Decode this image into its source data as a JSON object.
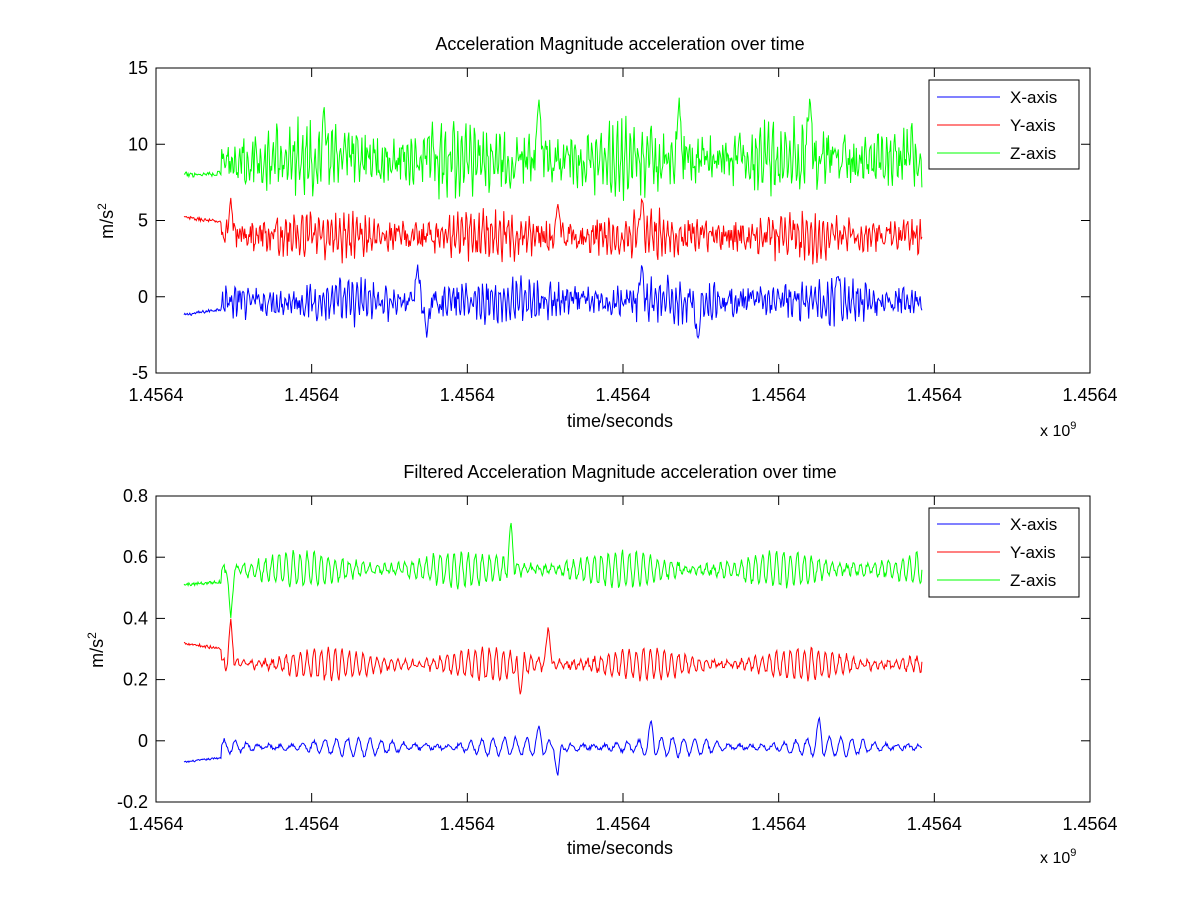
{
  "chart_data": [
    {
      "type": "line",
      "title": "Acceleration Magnitude acceleration over time",
      "xlabel": "time/seconds",
      "ylabel": "m/s",
      "ylabel_superscript": "2",
      "x_multiplier": {
        "base": "x 10",
        "exponent": "9"
      },
      "xtick_labels": [
        "1.4564",
        "1.4564",
        "1.4564",
        "1.4564",
        "1.4564",
        "1.4564",
        "1.4564"
      ],
      "yticks": [
        -5,
        0,
        5,
        10,
        15
      ],
      "ylim": [
        -5,
        15
      ],
      "legend_position": "top-right",
      "data_x_range": [
        0.03,
        0.82
      ],
      "series": [
        {
          "name": "X-axis",
          "color": "#0000ff",
          "baseline": [
            -1.2,
            -1.0,
            -0.8
          ],
          "burst_start": 0.07,
          "active_mean": -0.3,
          "amplitude": 1.4,
          "dominant_period": 0.0045,
          "peaks": [
            [
              0.28,
              2.2
            ],
            [
              0.29,
              -2.8
            ],
            [
              0.52,
              2.2
            ],
            [
              0.58,
              -3.0
            ],
            [
              0.73,
              1.6
            ]
          ]
        },
        {
          "name": "Y-axis",
          "color": "#ff0000",
          "baseline": [
            5.2,
            5.0,
            4.9
          ],
          "burst_start": 0.07,
          "active_mean": 4.0,
          "amplitude": 1.5,
          "dominant_period": 0.0045,
          "peaks": [
            [
              0.08,
              6.5
            ],
            [
              0.43,
              6.2
            ],
            [
              0.52,
              6.5
            ]
          ]
        },
        {
          "name": "Z-axis",
          "color": "#00ff00",
          "baseline": [
            8.0,
            8.3,
            8.1
          ],
          "burst_start": 0.07,
          "active_mean": 9.0,
          "amplitude": 2.3,
          "dominant_period": 0.0045,
          "peaks": [
            [
              0.18,
              12.5
            ],
            [
              0.41,
              13.0
            ],
            [
              0.56,
              13.2
            ],
            [
              0.7,
              13.3
            ]
          ]
        }
      ]
    },
    {
      "type": "line",
      "title": "Filtered Acceleration Magnitude acceleration over time",
      "xlabel": "time/seconds",
      "ylabel": "m/s",
      "ylabel_superscript": "2",
      "x_multiplier": {
        "base": "x 10",
        "exponent": "9"
      },
      "xtick_labels": [
        "1.4564",
        "1.4564",
        "1.4564",
        "1.4564",
        "1.4564",
        "1.4564",
        "1.4564"
      ],
      "yticks": [
        -0.2,
        0,
        0.2,
        0.4,
        0.6,
        0.8
      ],
      "ytick_labels": [
        "-0.2",
        "0",
        "0.2",
        "0.4",
        "0.6",
        "0.8"
      ],
      "ylim": [
        -0.2,
        0.8
      ],
      "legend_position": "top-right",
      "data_x_range": [
        0.03,
        0.82
      ],
      "series": [
        {
          "name": "X-axis",
          "color": "#0000ff",
          "baseline": [
            -0.07,
            -0.06,
            -0.055
          ],
          "burst_start": 0.07,
          "active_mean": -0.02,
          "amplitude": 0.04,
          "dominant_period": 0.012,
          "peaks": [
            [
              0.41,
              0.05
            ],
            [
              0.53,
              0.07
            ],
            [
              0.71,
              0.08
            ],
            [
              0.43,
              -0.12
            ]
          ]
        },
        {
          "name": "Y-axis",
          "color": "#ff0000",
          "baseline": [
            0.32,
            0.3,
            0.3
          ],
          "burst_start": 0.07,
          "active_mean": 0.25,
          "amplitude": 0.065,
          "dominant_period": 0.0075,
          "peaks": [
            [
              0.08,
              0.4
            ],
            [
              0.42,
              0.38
            ],
            [
              0.39,
              0.15
            ]
          ]
        },
        {
          "name": "Z-axis",
          "color": "#00ff00",
          "baseline": [
            0.51,
            0.5,
            0.52
          ],
          "burst_start": 0.07,
          "active_mean": 0.56,
          "amplitude": 0.075,
          "dominant_period": 0.0075,
          "peaks": [
            [
              0.38,
              0.72
            ],
            [
              0.08,
              0.4
            ]
          ]
        }
      ]
    }
  ]
}
